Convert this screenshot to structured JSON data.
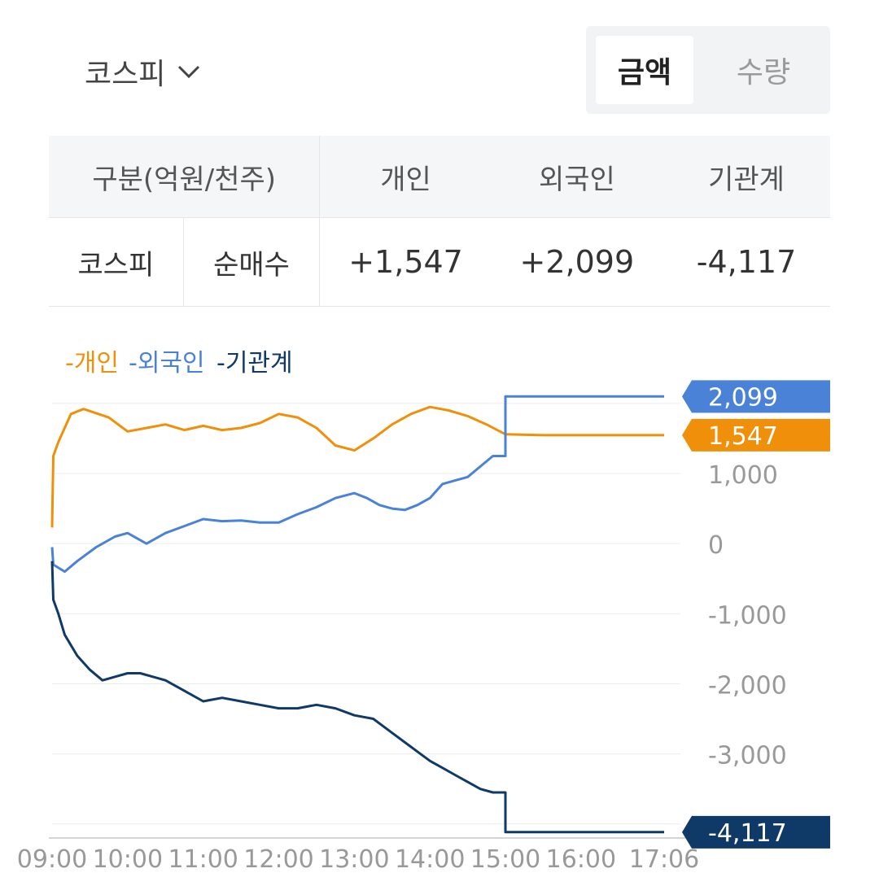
{
  "market_selector": {
    "label": "코스피"
  },
  "toggle": {
    "amount": "금액",
    "quantity": "수량"
  },
  "table": {
    "header": {
      "category": "구분(억원/천주)",
      "individual": "개인",
      "foreign": "외국인",
      "institution": "기관계"
    },
    "row": {
      "market": "코스피",
      "type": "순매수",
      "individual": "+1,547",
      "foreign": "+2,099",
      "institution": "-4,117"
    }
  },
  "colors": {
    "individual": "#f0900a",
    "foreign": "#4a82d8",
    "institution": "#0f3a68",
    "positive": "#d0504f",
    "negative": "#3f7ccc"
  },
  "chart_data": {
    "type": "line",
    "legend": [
      "개인",
      "외국인",
      "기관계"
    ],
    "legend_position": "top-left",
    "x_ticks": [
      "09:00",
      "10:00",
      "11:00",
      "12:00",
      "13:00",
      "14:00",
      "15:00",
      "16:00",
      "17:06"
    ],
    "y_ticks": [
      "1,000",
      "0",
      "-1,000",
      "-2,000",
      "-3,000"
    ],
    "ylim": [
      -4200,
      2300
    ],
    "grid": true,
    "end_labels": [
      "2,099",
      "1,547",
      "-4,117"
    ],
    "series": [
      {
        "name": "개인",
        "color": "#f0900a",
        "end_value": 1547,
        "x": [
          "09:00",
          "09:01",
          "09:05",
          "09:15",
          "09:25",
          "09:35",
          "09:45",
          "10:00",
          "10:15",
          "10:30",
          "10:45",
          "11:00",
          "11:15",
          "11:30",
          "11:45",
          "12:00",
          "12:15",
          "12:30",
          "12:45",
          "13:00",
          "13:15",
          "13:30",
          "13:45",
          "14:00",
          "14:15",
          "14:30",
          "14:45",
          "15:00",
          "15:30",
          "16:00",
          "17:06"
        ],
        "values": [
          230,
          1250,
          1450,
          1850,
          1920,
          1860,
          1800,
          1600,
          1650,
          1700,
          1620,
          1680,
          1620,
          1650,
          1720,
          1850,
          1800,
          1650,
          1400,
          1330,
          1500,
          1700,
          1850,
          1950,
          1900,
          1820,
          1700,
          1560,
          1547,
          1547,
          1547
        ]
      },
      {
        "name": "외국인",
        "color": "#4a82d8",
        "end_value": 2099,
        "x": [
          "09:00",
          "09:01",
          "09:10",
          "09:20",
          "09:35",
          "09:50",
          "10:00",
          "10:15",
          "10:30",
          "10:45",
          "11:00",
          "11:15",
          "11:30",
          "11:45",
          "12:00",
          "12:15",
          "12:30",
          "12:45",
          "13:00",
          "13:10",
          "13:20",
          "13:30",
          "13:40",
          "13:50",
          "14:00",
          "14:10",
          "14:20",
          "14:30",
          "14:40",
          "14:50",
          "15:00",
          "15:00",
          "15:30",
          "16:00",
          "17:06"
        ],
        "values": [
          -50,
          -300,
          -400,
          -250,
          -50,
          100,
          150,
          0,
          150,
          250,
          350,
          320,
          330,
          300,
          300,
          420,
          520,
          650,
          720,
          650,
          550,
          500,
          480,
          550,
          650,
          850,
          900,
          950,
          1100,
          1250,
          1250,
          2099,
          2099,
          2099,
          2099
        ]
      },
      {
        "name": "기관계",
        "color": "#0f3a68",
        "end_value": -4117,
        "x": [
          "09:00",
          "09:01",
          "09:05",
          "09:10",
          "09:20",
          "09:30",
          "09:40",
          "09:50",
          "10:00",
          "10:10",
          "10:20",
          "10:30",
          "10:45",
          "11:00",
          "11:15",
          "11:30",
          "11:45",
          "12:00",
          "12:15",
          "12:30",
          "12:45",
          "13:00",
          "13:15",
          "13:30",
          "13:45",
          "14:00",
          "14:10",
          "14:20",
          "14:30",
          "14:40",
          "14:50",
          "14:55",
          "15:00",
          "15:00",
          "15:30",
          "16:00",
          "17:06"
        ],
        "values": [
          -250,
          -800,
          -1000,
          -1300,
          -1600,
          -1800,
          -1950,
          -1900,
          -1850,
          -1850,
          -1900,
          -1950,
          -2100,
          -2250,
          -2200,
          -2250,
          -2300,
          -2350,
          -2350,
          -2300,
          -2350,
          -2450,
          -2500,
          -2700,
          -2900,
          -3100,
          -3200,
          -3300,
          -3400,
          -3500,
          -3550,
          -3550,
          -3550,
          -4117,
          -4117,
          -4117,
          -4117
        ]
      }
    ]
  }
}
